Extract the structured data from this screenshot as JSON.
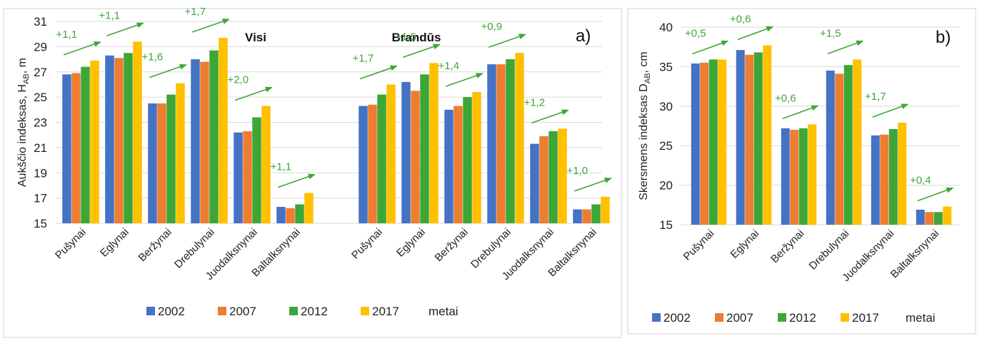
{
  "colors": {
    "2002": "#4472c4",
    "2007": "#ed7d31",
    "2012": "#3ea637",
    "2017": "#ffc000",
    "arrow": "#3ea637",
    "grid": "#d9d9d9"
  },
  "chart_data": [
    {
      "id": "a",
      "type": "bar",
      "panel_label": "a)",
      "ylabel_main": "Aukščio indeksas, H",
      "ylabel_sub": "AB",
      "ylabel_tail": ", m",
      "ylim": [
        15,
        31
      ],
      "yticks": [
        "15",
        "17",
        "19",
        "21",
        "23",
        "25",
        "27",
        "29",
        "31"
      ],
      "grid": true,
      "legend_position": "bottom",
      "legend_suffix": "metai",
      "series_names": [
        "2002",
        "2007",
        "2012",
        "2017"
      ],
      "groups": [
        {
          "title": "Visi",
          "categories": [
            "Pušynai",
            "Eglynai",
            "Beržynai",
            "Drebulynai",
            "Juodalksnynai",
            "Baltalksnynai"
          ],
          "series": [
            {
              "name": "2002",
              "values": [
                26.8,
                28.3,
                24.5,
                28.0,
                22.2,
                16.3
              ]
            },
            {
              "name": "2007",
              "values": [
                26.9,
                28.1,
                24.5,
                27.8,
                22.3,
                16.2
              ]
            },
            {
              "name": "2012",
              "values": [
                27.4,
                28.5,
                25.2,
                28.7,
                23.4,
                16.5
              ]
            },
            {
              "name": "2017",
              "values": [
                27.9,
                29.4,
                26.1,
                29.7,
                24.3,
                17.4
              ]
            }
          ],
          "annotations": [
            "+1,1",
            "+1,1",
            "+1,6",
            "+1,7",
            "+2,0",
            "+1,1"
          ]
        },
        {
          "title": "Brandūs",
          "categories": [
            "Pušynai",
            "Eglynai",
            "Beržynai",
            "Drebulynai",
            "Juodalksnynai",
            "Baltalksnynai"
          ],
          "series": [
            {
              "name": "2002",
              "values": [
                24.3,
                26.2,
                24.0,
                27.6,
                21.3,
                16.1
              ]
            },
            {
              "name": "2007",
              "values": [
                24.4,
                25.5,
                24.3,
                27.6,
                21.9,
                16.1
              ]
            },
            {
              "name": "2012",
              "values": [
                25.2,
                26.8,
                25.0,
                28.0,
                22.3,
                16.5
              ]
            },
            {
              "name": "2017",
              "values": [
                26.0,
                27.7,
                25.4,
                28.5,
                22.5,
                17.1
              ]
            }
          ],
          "annotations": [
            "+1,7",
            "+1,5",
            "+1,4",
            "+0,9",
            "+1,2",
            "+1,0"
          ]
        }
      ]
    },
    {
      "id": "b",
      "type": "bar",
      "panel_label": "b)",
      "ylabel_main": "Skersmens indeksas D",
      "ylabel_sub": "AB",
      "ylabel_tail": ", cm",
      "ylim": [
        15,
        40
      ],
      "yticks": [
        "15",
        "20",
        "25",
        "30",
        "35",
        "40"
      ],
      "grid": true,
      "legend_position": "bottom",
      "legend_suffix": "metai",
      "series_names": [
        "2002",
        "2007",
        "2012",
        "2017"
      ],
      "groups": [
        {
          "title": "",
          "categories": [
            "Pušynai",
            "Eglynai",
            "Beržynai",
            "Drebulynai",
            "Juodalksnynai",
            "Baltalksnynai"
          ],
          "series": [
            {
              "name": "2002",
              "values": [
                35.4,
                37.1,
                27.2,
                34.5,
                26.3,
                16.9
              ]
            },
            {
              "name": "2007",
              "values": [
                35.5,
                36.5,
                27.0,
                34.1,
                26.4,
                16.6
              ]
            },
            {
              "name": "2012",
              "values": [
                35.9,
                36.8,
                27.2,
                35.2,
                27.1,
                16.6
              ]
            },
            {
              "name": "2017",
              "values": [
                35.9,
                37.7,
                27.7,
                35.9,
                27.9,
                17.3
              ]
            }
          ],
          "annotations": [
            "+0,5",
            "+0,6",
            "+0,6",
            "+1,5",
            "+1,7",
            "+0,4"
          ]
        }
      ]
    }
  ]
}
